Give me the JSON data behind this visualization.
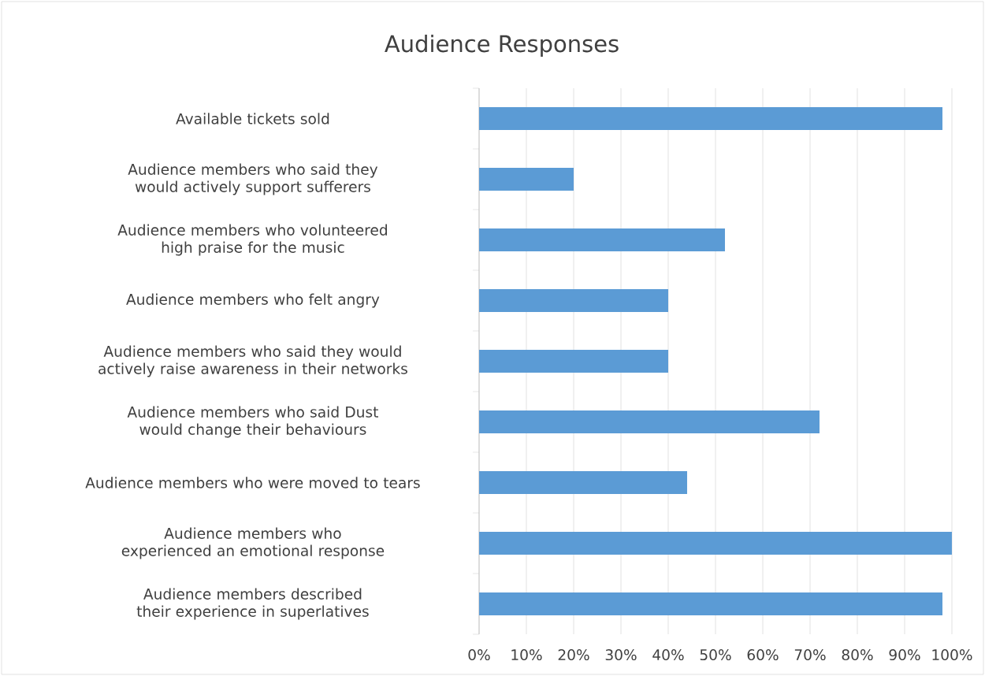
{
  "chart_data": {
    "type": "bar",
    "orientation": "horizontal",
    "title": "Audience Responses",
    "categories": [
      "Available tickets sold",
      "Audience members who said they would actively support sufferers",
      "Audience members who volunteered high praise for the music",
      "Audience members who felt angry",
      "Audience members who said they would actively raise awareness in their networks",
      "Audience members who said Dust would change their behaviours",
      "Audience members who were moved to tears",
      "Audience members who experienced an emotional response",
      "Audience members described their experience in superlatives"
    ],
    "values": [
      98,
      20,
      52,
      40,
      40,
      72,
      44,
      100,
      98
    ],
    "color": "#5b9bd5",
    "xlim": [
      0,
      100
    ],
    "xticks": [
      {
        "value": 0,
        "label": "0%"
      },
      {
        "value": 10,
        "label": "10%"
      },
      {
        "value": 20,
        "label": "20%"
      },
      {
        "value": 30,
        "label": "30%"
      },
      {
        "value": 40,
        "label": "40%"
      },
      {
        "value": 50,
        "label": "50%"
      },
      {
        "value": 60,
        "label": "60%"
      },
      {
        "value": 70,
        "label": "70%"
      },
      {
        "value": 80,
        "label": "80%"
      },
      {
        "value": 90,
        "label": "90%"
      },
      {
        "value": 100,
        "label": "100%"
      }
    ],
    "grid": "x"
  }
}
